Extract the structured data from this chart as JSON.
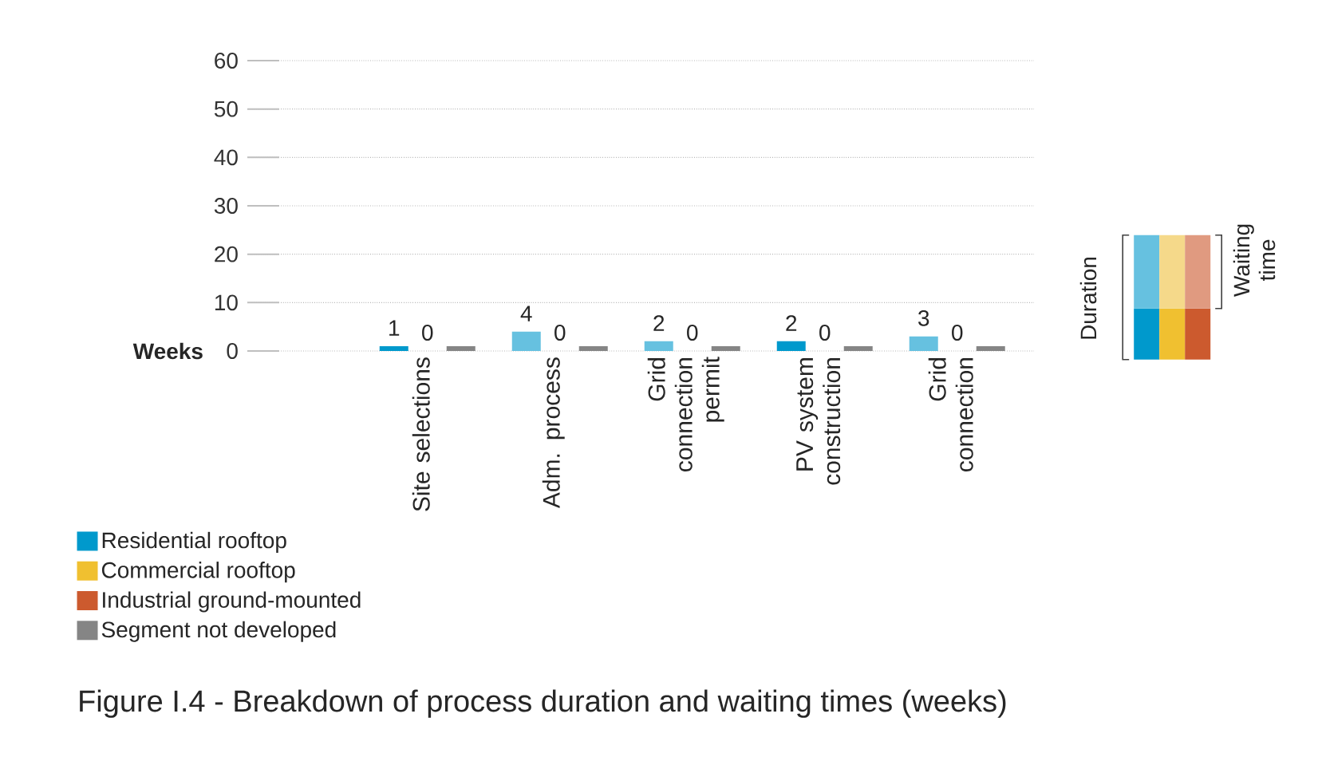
{
  "chart_data": {
    "type": "bar",
    "title": "Figure I.4 - Breakdown of process duration and waiting times (weeks)",
    "ylabel": "Weeks",
    "categories": [
      "Site selections",
      "Adm. process",
      "Grid connection permit",
      "PV system construction",
      "Grid connection"
    ],
    "series": [
      {
        "name": "Residential rooftop",
        "color": "#0099cc",
        "values": [
          1,
          4,
          2,
          2,
          3
        ],
        "colors": [
          "#0099cc",
          "#66c1e0",
          "#66c1e0",
          "#0099cc",
          "#66c1e0"
        ],
        "value_labels": [
          "1",
          "4",
          "2",
          "2",
          "3"
        ]
      },
      {
        "name": "Commercial rooftop",
        "color": "#f0c030",
        "values": [
          0,
          0,
          0,
          0,
          0
        ],
        "value_labels": [
          "0",
          "0",
          "0",
          "0",
          "0"
        ]
      },
      {
        "name": "Industrial ground-mounted",
        "color": "#cc5a2e",
        "values": [
          null,
          null,
          null,
          null,
          null
        ]
      },
      {
        "name": "Segment not developed",
        "color": "#858585",
        "values": [
          1,
          1,
          1,
          1,
          1
        ]
      }
    ],
    "ylim": [
      0,
      60
    ],
    "yticks": [
      0,
      10,
      20,
      30,
      40,
      50,
      60
    ],
    "grid": "y",
    "legend": "bottom left",
    "annotations": [
      "Duration",
      "Waiting time"
    ]
  }
}
